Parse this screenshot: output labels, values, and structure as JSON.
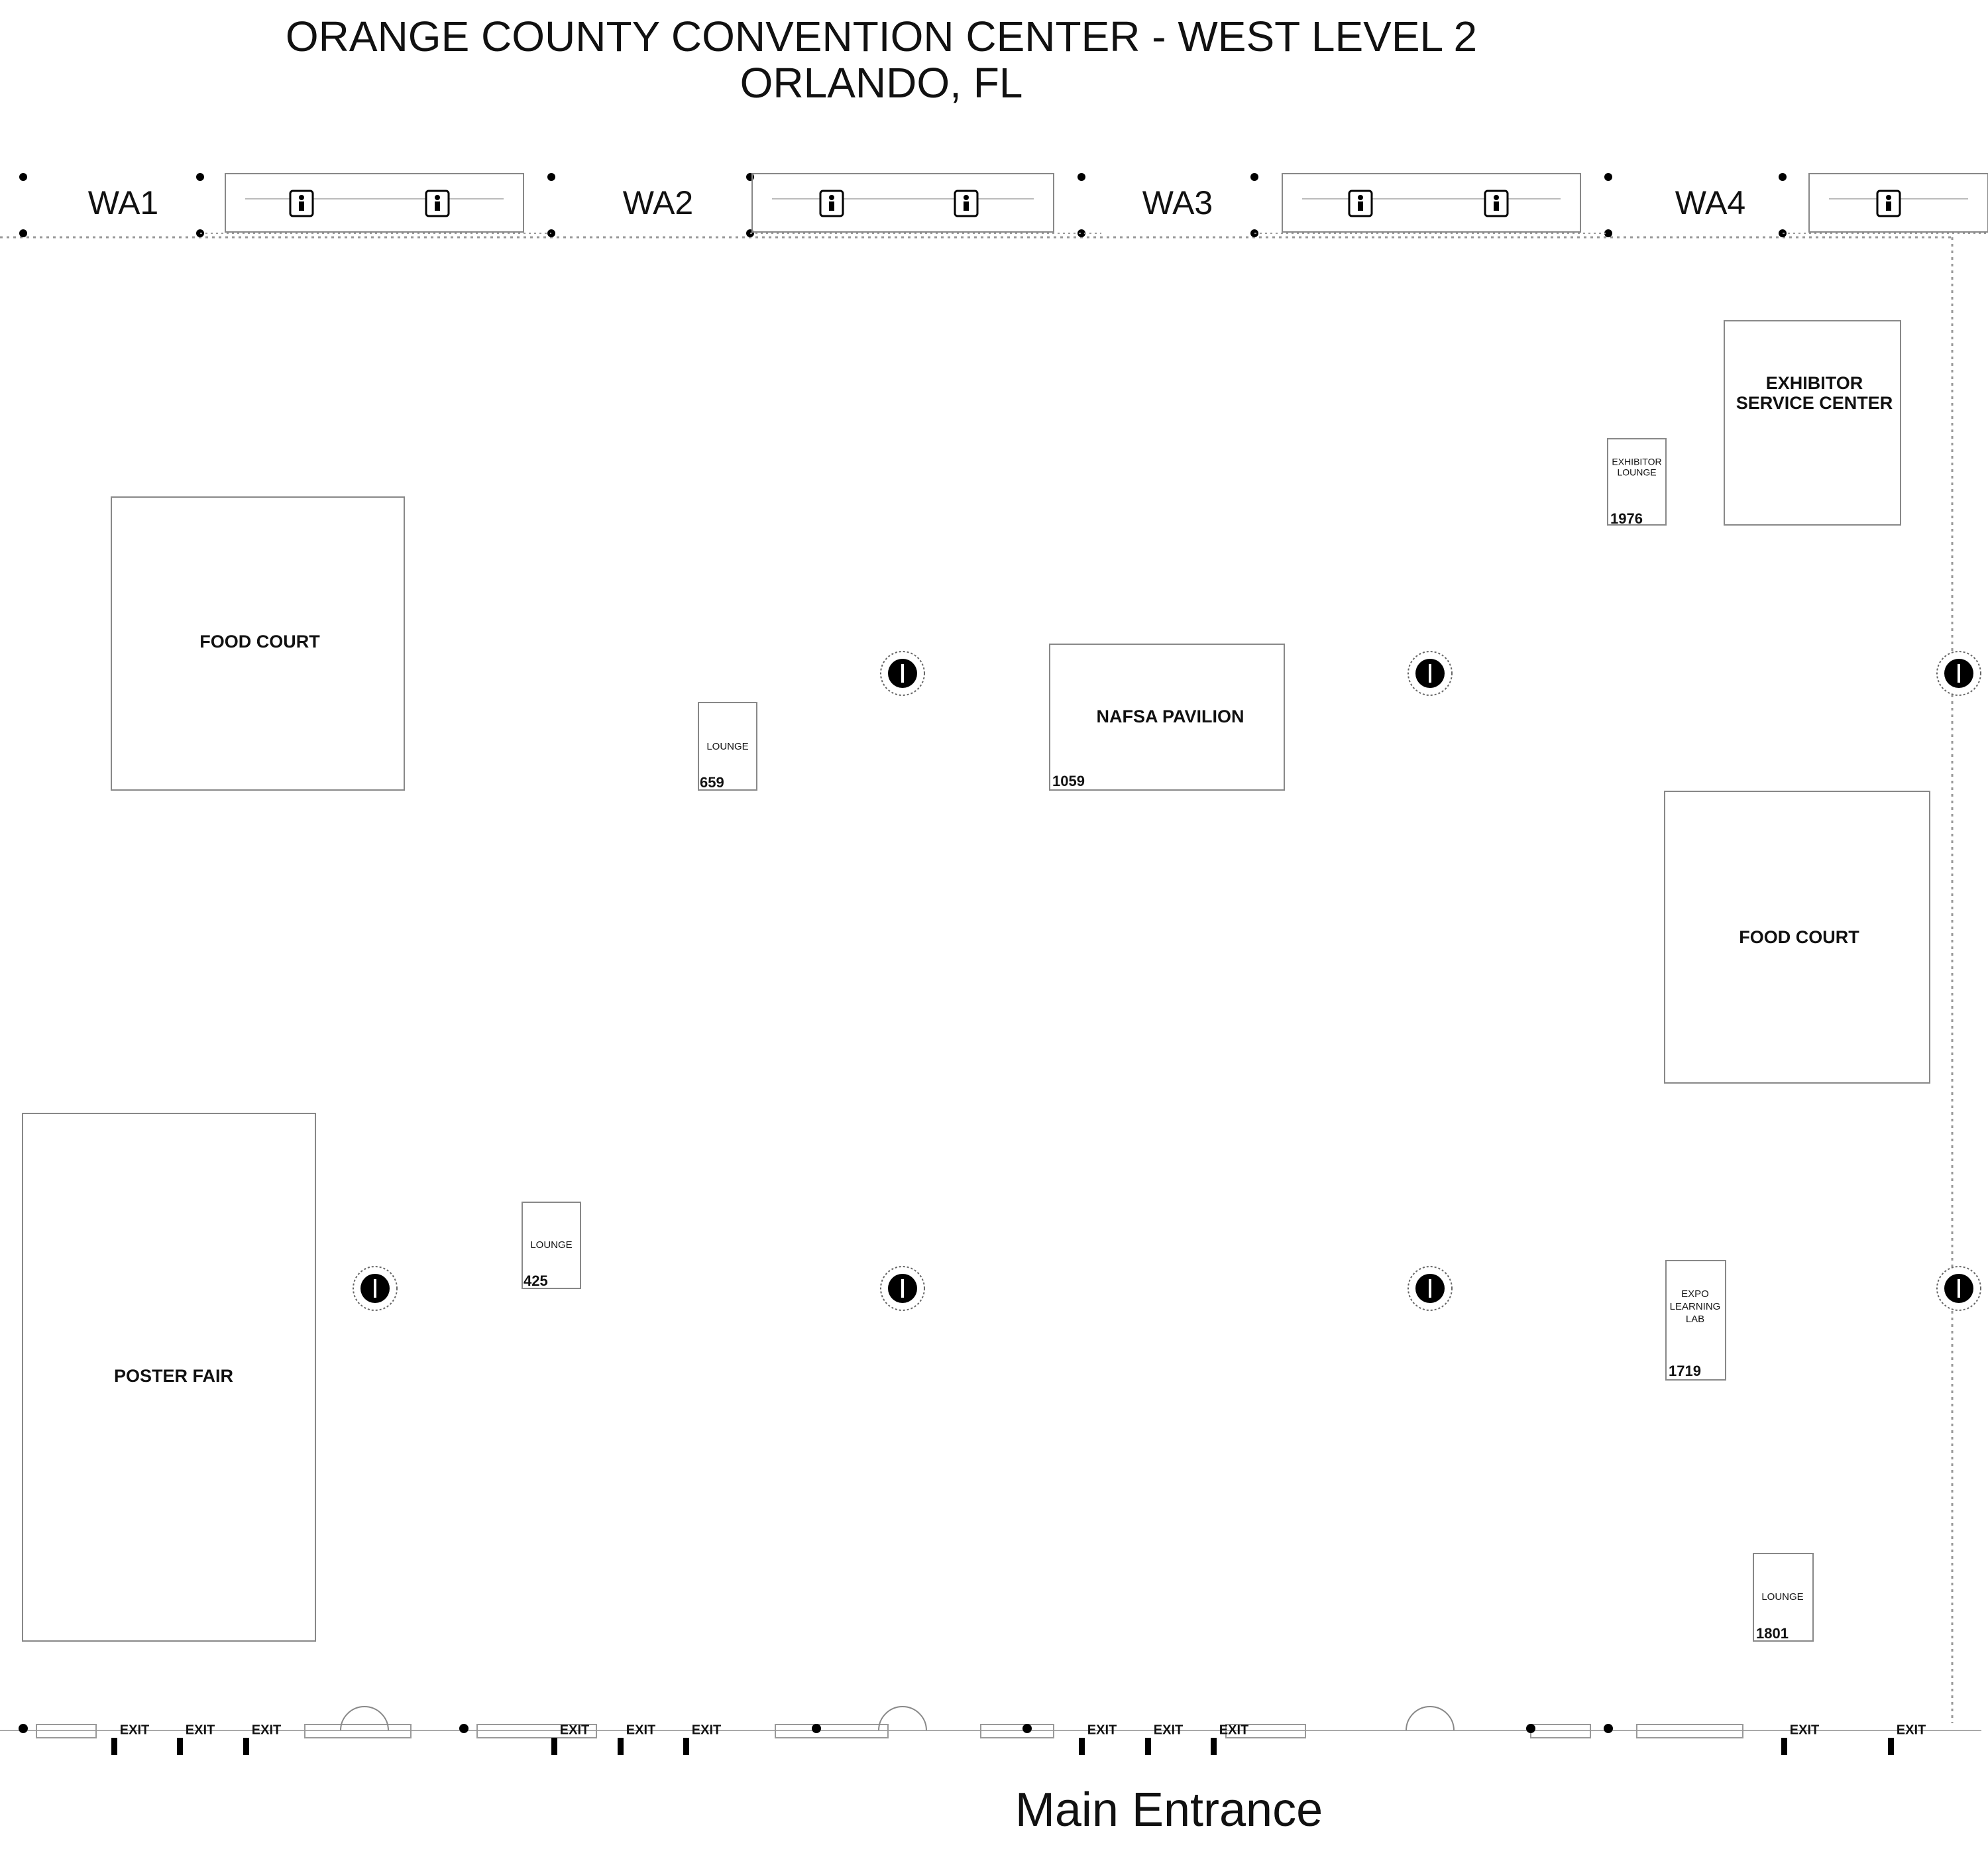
{
  "header": {
    "title": "ORANGE COUNTY CONVENTION CENTER - WEST LEVEL 2",
    "subtitle": "ORLANDO, FL"
  },
  "halls": [
    "WA1",
    "WA2",
    "WA3",
    "WA4"
  ],
  "rooms": [
    {
      "lines": [
        "FOOD COURT"
      ]
    },
    {
      "lines": [
        "LOUNGE"
      ],
      "booth": "659"
    },
    {
      "lines": [
        "NAFSA PAVILION"
      ],
      "booth": "1059"
    },
    {
      "lines": [
        "EXHIBITOR",
        "LOUNGE"
      ],
      "booth": "1976"
    },
    {
      "lines": [
        "EXHIBITOR",
        "SERVICE CENTER"
      ]
    },
    {
      "lines": [
        "FOOD COURT"
      ]
    },
    {
      "lines": [
        "POSTER FAIR"
      ]
    },
    {
      "lines": [
        "LOUNGE"
      ],
      "booth": "425"
    },
    {
      "lines": [
        "EXPO",
        "LEARNING",
        "LAB"
      ],
      "booth": "1719"
    },
    {
      "lines": [
        "LOUNGE"
      ],
      "booth": "1801"
    }
  ],
  "exits": [
    "EXIT",
    "EXIT",
    "EXIT",
    "EXIT",
    "EXIT",
    "EXIT",
    "EXIT",
    "EXIT",
    "EXIT",
    "EXIT",
    "EXIT"
  ],
  "entrance": "Main Entrance"
}
